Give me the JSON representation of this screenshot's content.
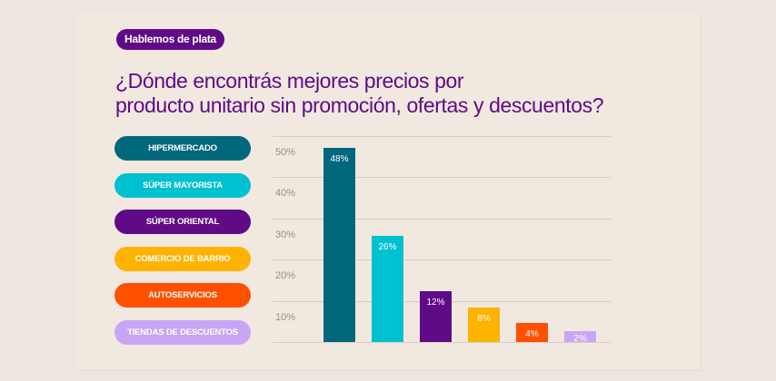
{
  "badge": "Hablemos de plata",
  "title_line1": "¿Dónde encontrás mejores precios por",
  "title_line2": "producto unitario sin promoción, ofertas y descuentos?",
  "legend": [
    {
      "label": "HIPERMERCADO",
      "color": "#00687d"
    },
    {
      "label": "SÚPER MAYORISTA",
      "color": "#00c1cf"
    },
    {
      "label": "SÚPER ORIENTAL",
      "color": "#5f0a87"
    },
    {
      "label": "COMERCIO DE BARRIO",
      "color": "#ffb300"
    },
    {
      "label": "AUTOSERVICIOS",
      "color": "#ff5000"
    },
    {
      "label": "TIENDAS DE DESCUENTOS",
      "color": "#c9a6f5"
    }
  ],
  "chart_data": {
    "type": "bar",
    "title": "¿Dónde encontrás mejores precios por producto unitario sin promoción, ofertas y descuentos?",
    "categories": [
      "HIPERMERCADO",
      "SÚPER MAYORISTA",
      "SÚPER ORIENTAL",
      "COMERCIO DE BARRIO",
      "AUTOSERVICIOS",
      "TIENDAS DE DESCUENTOS"
    ],
    "values": [
      48,
      26,
      12,
      8,
      4,
      2
    ],
    "value_labels": [
      "48%",
      "26%",
      "12%",
      "8%",
      "4%",
      "2%"
    ],
    "colors": [
      "#00687d",
      "#00c1cf",
      "#5f0a87",
      "#ffb300",
      "#ff5000",
      "#c9a6f5"
    ],
    "yticks": [
      "10%",
      "20%",
      "30%",
      "40%",
      "50%"
    ],
    "ylim": [
      0,
      50
    ],
    "xlabel": "",
    "ylabel": "",
    "grid": true,
    "legend_position": "left"
  }
}
